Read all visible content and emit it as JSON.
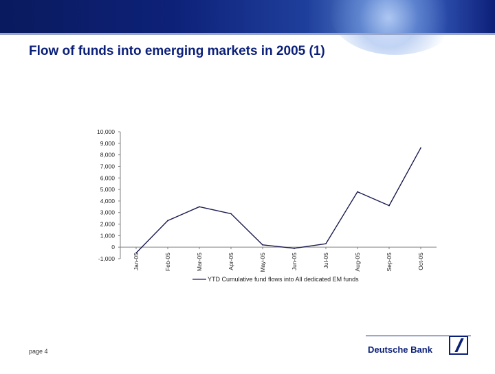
{
  "slide": {
    "title": "Flow of funds into emerging markets in 2005 (1)",
    "page_label": "page 4",
    "brand_name": "Deutsche Bank"
  },
  "colors": {
    "header": "#0a1f78",
    "line": "#1a1a4e",
    "axis": "#808080"
  },
  "chart_data": {
    "type": "line",
    "categories": [
      "Jan-05",
      "Feb-05",
      "Mar-05",
      "Apr-05",
      "May-05",
      "Jun-05",
      "Jul-05",
      "Aug-05",
      "Sep-05",
      "Oct-05"
    ],
    "series": [
      {
        "name": "YTD Cumulative fund flows into All dedicated EM funds",
        "values": [
          -500,
          2300,
          3500,
          2900,
          200,
          -100,
          300,
          4800,
          3600,
          8600
        ]
      }
    ],
    "ylim": [
      -1000,
      10000
    ],
    "yticks": [
      -1000,
      0,
      1000,
      2000,
      3000,
      4000,
      5000,
      6000,
      7000,
      8000,
      9000,
      10000
    ],
    "ytick_labels": [
      "-1,000",
      "0",
      "1,000",
      "2,000",
      "3,000",
      "4,000",
      "5,000",
      "6,000",
      "7,000",
      "8,000",
      "9,000",
      "10,000"
    ],
    "legend_position": "bottom",
    "grid": false
  }
}
